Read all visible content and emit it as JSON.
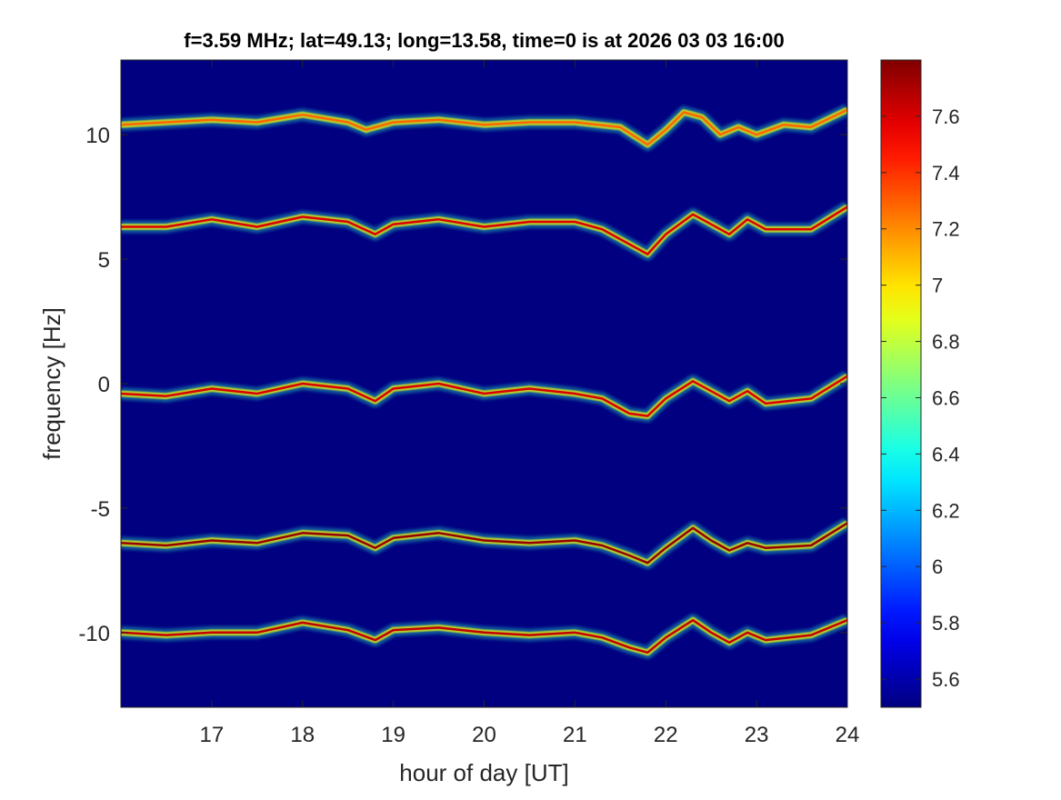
{
  "chart_data": {
    "type": "heatmap",
    "title": "f=3.59 MHz;  lat=49.13; long=13.58, time=0 is at 2026 03 03 16:00",
    "xlabel": "hour of day [UT]",
    "ylabel": "frequency [Hz]",
    "xlim": [
      16,
      24
    ],
    "ylim": [
      -13,
      13
    ],
    "xticks": [
      17,
      18,
      19,
      20,
      21,
      22,
      23,
      24
    ],
    "xtick_labels": [
      "17",
      "18",
      "19",
      "20",
      "21",
      "22",
      "23",
      "24"
    ],
    "yticks": [
      10,
      5,
      0,
      -5,
      -10
    ],
    "ytick_labels": [
      "10",
      "5",
      "0",
      "-5",
      "-10"
    ],
    "colorbar": {
      "colormap": "jet",
      "range": [
        5.5,
        7.8
      ],
      "ticks": [
        7.6,
        7.4,
        7.2,
        7,
        6.8,
        6.6,
        6.4,
        6.2,
        6,
        5.8,
        5.6
      ],
      "tick_labels": [
        "7.6",
        "7.4",
        "7.2",
        "7",
        "6.8",
        "6.6",
        "6.4",
        "6.2",
        "6",
        "5.8",
        "5.6"
      ]
    },
    "background_color": "#000080",
    "series": [
      {
        "intensity": 0.5,
        "points": [
          [
            16.0,
            10.4
          ],
          [
            16.5,
            10.5
          ],
          [
            17.0,
            10.6
          ],
          [
            17.5,
            10.5
          ],
          [
            18.0,
            10.8
          ],
          [
            18.5,
            10.5
          ],
          [
            18.7,
            10.2
          ],
          [
            19.0,
            10.5
          ],
          [
            19.5,
            10.6
          ],
          [
            20.0,
            10.4
          ],
          [
            20.5,
            10.5
          ],
          [
            21.0,
            10.5
          ],
          [
            21.5,
            10.3
          ],
          [
            21.8,
            9.6
          ],
          [
            22.0,
            10.2
          ],
          [
            22.2,
            10.9
          ],
          [
            22.4,
            10.7
          ],
          [
            22.6,
            10.0
          ],
          [
            22.8,
            10.3
          ],
          [
            23.0,
            10.0
          ],
          [
            23.3,
            10.4
          ],
          [
            23.6,
            10.3
          ],
          [
            24.0,
            11.0
          ]
        ]
      },
      {
        "intensity": 0.8,
        "points": [
          [
            16.0,
            6.3
          ],
          [
            16.5,
            6.3
          ],
          [
            17.0,
            6.6
          ],
          [
            17.5,
            6.3
          ],
          [
            18.0,
            6.7
          ],
          [
            18.5,
            6.5
          ],
          [
            18.8,
            6.0
          ],
          [
            19.0,
            6.4
          ],
          [
            19.5,
            6.6
          ],
          [
            20.0,
            6.3
          ],
          [
            20.5,
            6.5
          ],
          [
            21.0,
            6.5
          ],
          [
            21.3,
            6.2
          ],
          [
            21.6,
            5.6
          ],
          [
            21.8,
            5.2
          ],
          [
            22.0,
            6.0
          ],
          [
            22.3,
            6.8
          ],
          [
            22.5,
            6.4
          ],
          [
            22.7,
            6.0
          ],
          [
            22.9,
            6.6
          ],
          [
            23.1,
            6.2
          ],
          [
            23.6,
            6.2
          ],
          [
            24.0,
            7.1
          ]
        ]
      },
      {
        "intensity": 0.8,
        "points": [
          [
            16.0,
            -0.4
          ],
          [
            16.5,
            -0.5
          ],
          [
            17.0,
            -0.2
          ],
          [
            17.5,
            -0.4
          ],
          [
            18.0,
            0.0
          ],
          [
            18.5,
            -0.2
          ],
          [
            18.8,
            -0.7
          ],
          [
            19.0,
            -0.2
          ],
          [
            19.5,
            0.0
          ],
          [
            20.0,
            -0.4
          ],
          [
            20.5,
            -0.2
          ],
          [
            21.0,
            -0.4
          ],
          [
            21.3,
            -0.6
          ],
          [
            21.6,
            -1.2
          ],
          [
            21.8,
            -1.3
          ],
          [
            22.0,
            -0.6
          ],
          [
            22.3,
            0.1
          ],
          [
            22.5,
            -0.3
          ],
          [
            22.7,
            -0.7
          ],
          [
            22.9,
            -0.3
          ],
          [
            23.1,
            -0.8
          ],
          [
            23.6,
            -0.6
          ],
          [
            24.0,
            0.3
          ]
        ]
      },
      {
        "intensity": 0.95,
        "points": [
          [
            16.0,
            -6.4
          ],
          [
            16.5,
            -6.5
          ],
          [
            17.0,
            -6.3
          ],
          [
            17.5,
            -6.4
          ],
          [
            18.0,
            -6.0
          ],
          [
            18.5,
            -6.1
          ],
          [
            18.8,
            -6.6
          ],
          [
            19.0,
            -6.2
          ],
          [
            19.5,
            -6.0
          ],
          [
            20.0,
            -6.3
          ],
          [
            20.5,
            -6.4
          ],
          [
            21.0,
            -6.3
          ],
          [
            21.3,
            -6.5
          ],
          [
            21.6,
            -6.9
          ],
          [
            21.8,
            -7.2
          ],
          [
            22.0,
            -6.6
          ],
          [
            22.3,
            -5.8
          ],
          [
            22.5,
            -6.3
          ],
          [
            22.7,
            -6.7
          ],
          [
            22.9,
            -6.4
          ],
          [
            23.1,
            -6.6
          ],
          [
            23.6,
            -6.5
          ],
          [
            24.0,
            -5.6
          ]
        ]
      },
      {
        "intensity": 0.85,
        "points": [
          [
            16.0,
            -10.0
          ],
          [
            16.5,
            -10.1
          ],
          [
            17.0,
            -10.0
          ],
          [
            17.5,
            -10.0
          ],
          [
            18.0,
            -9.6
          ],
          [
            18.5,
            -9.9
          ],
          [
            18.8,
            -10.3
          ],
          [
            19.0,
            -9.9
          ],
          [
            19.5,
            -9.8
          ],
          [
            20.0,
            -10.0
          ],
          [
            20.5,
            -10.1
          ],
          [
            21.0,
            -10.0
          ],
          [
            21.3,
            -10.2
          ],
          [
            21.6,
            -10.6
          ],
          [
            21.8,
            -10.8
          ],
          [
            22.0,
            -10.2
          ],
          [
            22.3,
            -9.5
          ],
          [
            22.5,
            -10.0
          ],
          [
            22.7,
            -10.4
          ],
          [
            22.9,
            -10.0
          ],
          [
            23.1,
            -10.3
          ],
          [
            23.6,
            -10.1
          ],
          [
            24.0,
            -9.5
          ]
        ]
      }
    ]
  }
}
